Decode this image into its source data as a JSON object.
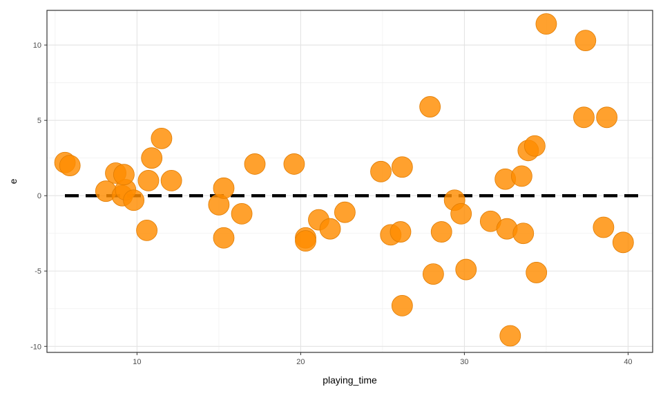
{
  "chart_data": {
    "type": "scatter",
    "xlabel": "playing_time",
    "ylabel": "e",
    "xlim": [
      4.5,
      41.5
    ],
    "ylim": [
      -10.4,
      12.3
    ],
    "x_ticks": [
      10,
      20,
      30,
      40
    ],
    "y_ticks": [
      -10,
      -5,
      0,
      5,
      10
    ],
    "x_tick_labels": [
      "10",
      "20",
      "30",
      "40"
    ],
    "y_tick_labels": [
      "-10",
      "-5",
      "0",
      "5",
      "10"
    ],
    "grid": true,
    "reference_line": {
      "y": 0,
      "style": "dashed",
      "color": "#000000"
    },
    "point_color": "#ff8c00",
    "points": [
      {
        "x": 5.6,
        "y": 2.2
      },
      {
        "x": 5.9,
        "y": 2.0
      },
      {
        "x": 8.1,
        "y": 0.3
      },
      {
        "x": 8.7,
        "y": 1.5
      },
      {
        "x": 9.1,
        "y": 0.0
      },
      {
        "x": 9.3,
        "y": 0.4
      },
      {
        "x": 9.2,
        "y": 1.4
      },
      {
        "x": 9.8,
        "y": -0.3
      },
      {
        "x": 10.6,
        "y": -2.3
      },
      {
        "x": 10.7,
        "y": 1.0
      },
      {
        "x": 10.9,
        "y": 2.5
      },
      {
        "x": 11.5,
        "y": 3.8
      },
      {
        "x": 12.1,
        "y": 1.0
      },
      {
        "x": 15.0,
        "y": -0.6
      },
      {
        "x": 15.3,
        "y": 0.5
      },
      {
        "x": 15.3,
        "y": -2.8
      },
      {
        "x": 16.4,
        "y": -1.2
      },
      {
        "x": 17.2,
        "y": 2.1
      },
      {
        "x": 19.6,
        "y": 2.1
      },
      {
        "x": 20.3,
        "y": -2.8
      },
      {
        "x": 20.3,
        "y": -3.0
      },
      {
        "x": 21.1,
        "y": -1.6
      },
      {
        "x": 21.8,
        "y": -2.2
      },
      {
        "x": 22.7,
        "y": -1.1
      },
      {
        "x": 24.9,
        "y": 1.6
      },
      {
        "x": 25.5,
        "y": -2.6
      },
      {
        "x": 26.1,
        "y": -2.4
      },
      {
        "x": 26.2,
        "y": 1.9
      },
      {
        "x": 26.2,
        "y": -7.3
      },
      {
        "x": 27.9,
        "y": 5.9
      },
      {
        "x": 28.1,
        "y": -5.2
      },
      {
        "x": 28.6,
        "y": -2.4
      },
      {
        "x": 29.4,
        "y": -0.3
      },
      {
        "x": 29.8,
        "y": -1.2
      },
      {
        "x": 30.1,
        "y": -4.9
      },
      {
        "x": 31.6,
        "y": -1.7
      },
      {
        "x": 32.5,
        "y": 1.1
      },
      {
        "x": 32.6,
        "y": -2.2
      },
      {
        "x": 32.8,
        "y": -9.3
      },
      {
        "x": 33.5,
        "y": 1.3
      },
      {
        "x": 33.6,
        "y": -2.5
      },
      {
        "x": 33.9,
        "y": 3.0
      },
      {
        "x": 34.3,
        "y": 3.3
      },
      {
        "x": 34.4,
        "y": -5.1
      },
      {
        "x": 35.0,
        "y": 11.4
      },
      {
        "x": 37.3,
        "y": 5.2
      },
      {
        "x": 37.4,
        "y": 10.3
      },
      {
        "x": 38.5,
        "y": -2.1
      },
      {
        "x": 38.7,
        "y": 5.2
      },
      {
        "x": 39.7,
        "y": -3.1
      }
    ]
  }
}
